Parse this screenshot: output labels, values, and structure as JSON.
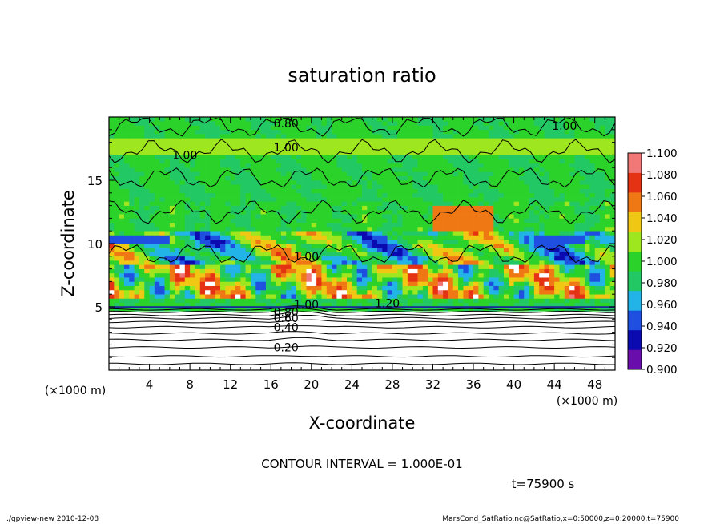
{
  "chart_data": {
    "type": "heatmap",
    "title": "saturation ratio",
    "xlabel": "X-coordinate",
    "ylabel": "Z-coordinate",
    "x_unit_left": "(×1000 m)",
    "x_unit_right": "(×1000 m)",
    "xlim": [
      0,
      50
    ],
    "ylim": [
      0,
      20
    ],
    "x_ticks": [
      4,
      8,
      12,
      16,
      20,
      24,
      28,
      32,
      36,
      40,
      44,
      48
    ],
    "y_ticks": [
      5,
      10,
      15
    ],
    "colorbar": {
      "levels": [
        "0.900",
        "0.920",
        "0.940",
        "0.960",
        "0.980",
        "1.000",
        "1.020",
        "1.040",
        "1.060",
        "1.080",
        "1.100"
      ],
      "colors": [
        "#6a0dad",
        "#0a0ab0",
        "#1f4fe0",
        "#22b4e6",
        "#22c864",
        "#2ad22a",
        "#9ee61e",
        "#f0c814",
        "#f07814",
        "#e63214",
        "#f27878"
      ]
    },
    "contour_labels": [
      {
        "x": 17.5,
        "z": 1.8,
        "text": "0.20"
      },
      {
        "x": 17.5,
        "z": 3.4,
        "text": "0.40"
      },
      {
        "x": 17.5,
        "z": 4.1,
        "text": "0.60"
      },
      {
        "x": 17.5,
        "z": 4.6,
        "text": "0.80"
      },
      {
        "x": 19.5,
        "z": 5.2,
        "text": "1.00"
      },
      {
        "x": 27.5,
        "z": 5.3,
        "text": "1.20"
      },
      {
        "x": 19.5,
        "z": 9.0,
        "text": "1.00"
      },
      {
        "x": 17.5,
        "z": 17.6,
        "text": "1.00"
      },
      {
        "x": 7.5,
        "z": 17.0,
        "text": "1.00"
      },
      {
        "x": 17.5,
        "z": 19.5,
        "text": "0.80"
      },
      {
        "x": 45,
        "z": 19.3,
        "text": "1.00"
      }
    ]
  },
  "contour_interval": "CONTOUR INTERVAL = 1.000E-01",
  "time_label": "t=75900 s",
  "footer_left": "./gpview-new   2010-12-08",
  "footer_right": "MarsCond_SatRatio.nc@SatRatio,x=0:50000,z=0:20000,t=75900"
}
